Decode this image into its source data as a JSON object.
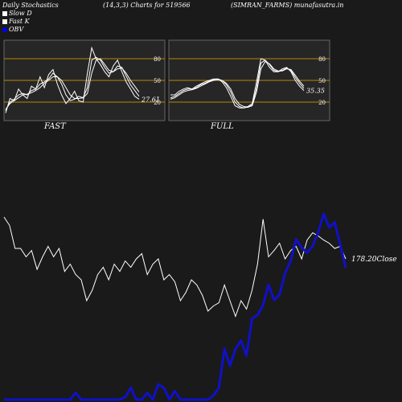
{
  "header": {
    "title": "Daily Stochastics",
    "params": "(14,3,3) Charts for 519566",
    "symbol": "(SIMRAN_FARMS) munafasutra.in"
  },
  "legend": [
    {
      "label": "Slow  D",
      "color": "#ffffff",
      "shape": "square"
    },
    {
      "label": "Fast K",
      "color": "#ffffff",
      "shape": "square"
    },
    {
      "label": "OBV",
      "color": "#0000ff",
      "shape": "circle"
    }
  ],
  "colors": {
    "background": "#1a1a1a",
    "panel": "#262626",
    "stoch_line": "#ffffff",
    "level_line": "#b8860b",
    "obv_line": "#1010c8",
    "close_line": "#ffffff"
  },
  "chart_data": [
    {
      "type": "line",
      "panel_label": "FAST",
      "ylim": [
        0,
        100
      ],
      "levels": [
        20,
        50,
        80
      ],
      "tick_labels": [
        "80",
        "50",
        "20"
      ],
      "last_value_label": "27.61",
      "series": [
        {
          "values": [
            5,
            25,
            22,
            38,
            30,
            25,
            42,
            38,
            55,
            40,
            58,
            65,
            45,
            30,
            18,
            25,
            35,
            22,
            20,
            60,
            95,
            80,
            72,
            62,
            55,
            70,
            78,
            62,
            48,
            38,
            28,
            24
          ]
        },
        {
          "values": [
            8,
            20,
            24,
            30,
            32,
            30,
            36,
            38,
            45,
            48,
            52,
            60,
            55,
            45,
            30,
            22,
            24,
            28,
            26,
            40,
            78,
            82,
            78,
            68,
            60,
            62,
            70,
            68,
            56,
            44,
            36,
            28
          ]
        },
        {
          "values": [
            10,
            18,
            22,
            26,
            30,
            31,
            33,
            36,
            40,
            46,
            50,
            55,
            55,
            50,
            40,
            30,
            25,
            25,
            26,
            32,
            60,
            78,
            80,
            72,
            64,
            62,
            66,
            67,
            60,
            50,
            42,
            34
          ]
        }
      ]
    },
    {
      "type": "line",
      "panel_label": "FULL",
      "ylim": [
        0,
        100
      ],
      "levels": [
        20,
        50,
        80
      ],
      "tick_labels": [
        "80",
        "50",
        "20"
      ],
      "last_value_label": "35.35",
      "series": [
        {
          "values": [
            30,
            30,
            35,
            38,
            40,
            38,
            42,
            45,
            48,
            50,
            52,
            52,
            48,
            40,
            28,
            15,
            12,
            12,
            14,
            18,
            48,
            80,
            78,
            68,
            62,
            62,
            66,
            68,
            62,
            50,
            42,
            36
          ]
        },
        {
          "values": [
            26,
            28,
            32,
            36,
            38,
            38,
            40,
            44,
            46,
            49,
            51,
            52,
            50,
            44,
            34,
            20,
            14,
            12,
            13,
            16,
            40,
            74,
            78,
            72,
            64,
            62,
            64,
            67,
            64,
            54,
            46,
            39
          ]
        },
        {
          "values": [
            24,
            26,
            30,
            34,
            36,
            37,
            39,
            42,
            45,
            48,
            50,
            51,
            50,
            46,
            38,
            25,
            17,
            14,
            13,
            15,
            34,
            66,
            76,
            73,
            66,
            63,
            63,
            66,
            65,
            57,
            49,
            42
          ]
        }
      ]
    },
    {
      "type": "line",
      "close_label": "178.20",
      "close_suffix": "Close",
      "series": [
        {
          "name": "Close",
          "values": [
            100,
            92,
            70,
            70,
            62,
            68,
            50,
            62,
            72,
            62,
            70,
            48,
            55,
            45,
            40,
            20,
            30,
            45,
            52,
            40,
            55,
            48,
            58,
            52,
            60,
            65,
            45,
            55,
            60,
            40,
            45,
            38,
            20,
            28,
            40,
            35,
            25,
            10,
            15,
            18,
            35,
            20,
            5,
            20,
            12,
            30,
            55,
            98,
            62,
            68,
            75,
            60,
            68,
            72,
            60,
            78,
            85,
            82,
            78,
            75,
            70,
            72,
            60
          ]
        },
        {
          "name": "OBV",
          "values": [
            0,
            0,
            0,
            0,
            0,
            0,
            0,
            0,
            0,
            0,
            0,
            0,
            0,
            8,
            0,
            0,
            0,
            0,
            0,
            0,
            0,
            0,
            3,
            14,
            0,
            0,
            8,
            0,
            18,
            14,
            0,
            10,
            0,
            0,
            0,
            0,
            0,
            0,
            5,
            14,
            60,
            40,
            60,
            70,
            52,
            96,
            100,
            112,
            136,
            118,
            124,
            150,
            164,
            190,
            180,
            174,
            182,
            198,
            220,
            204,
            210,
            184,
            156
          ]
        }
      ]
    }
  ]
}
